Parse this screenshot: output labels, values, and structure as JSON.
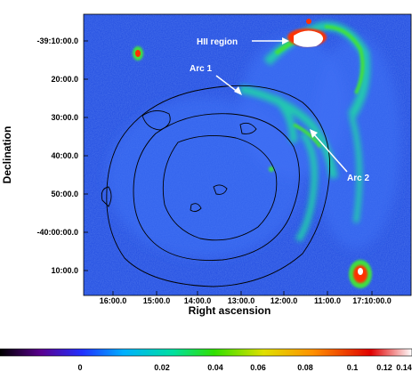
{
  "figure": {
    "axes": {
      "xlabel": "Right ascension",
      "ylabel": "Declination",
      "x_ticks": [
        "16:00.0",
        "15:00.0",
        "14:00.0",
        "13:00.0",
        "12:00.0",
        "11:00.0",
        "17:10:00.0"
      ],
      "y_ticks": [
        "-39:10:00.0",
        "20:00.0",
        "30:00.0",
        "40:00.0",
        "50:00.0",
        "-40:00:00.0",
        "10:00.0"
      ]
    },
    "annotations": [
      {
        "label": "HII region"
      },
      {
        "label": "Arc 1"
      },
      {
        "label": "Arc 2"
      }
    ],
    "colorbar": {
      "ticks": [
        "0",
        "0.02",
        "0.04",
        "0.06",
        "0.08",
        "0.1",
        "0.12",
        "0.14"
      ],
      "colors": [
        "#000000",
        "#5a0090",
        "#2030ff",
        "#00b0ff",
        "#00e0a0",
        "#30e000",
        "#e0e000",
        "#ff9000",
        "#e00000",
        "#ffffff"
      ]
    },
    "image_colors": {
      "background": "#1f4ae0",
      "diffuse": "#3d6ff5",
      "filament": "#20c8b0",
      "bright": "#40e040",
      "hot": "#ff3000",
      "core": "#ffffff",
      "contour": "#000000"
    }
  }
}
